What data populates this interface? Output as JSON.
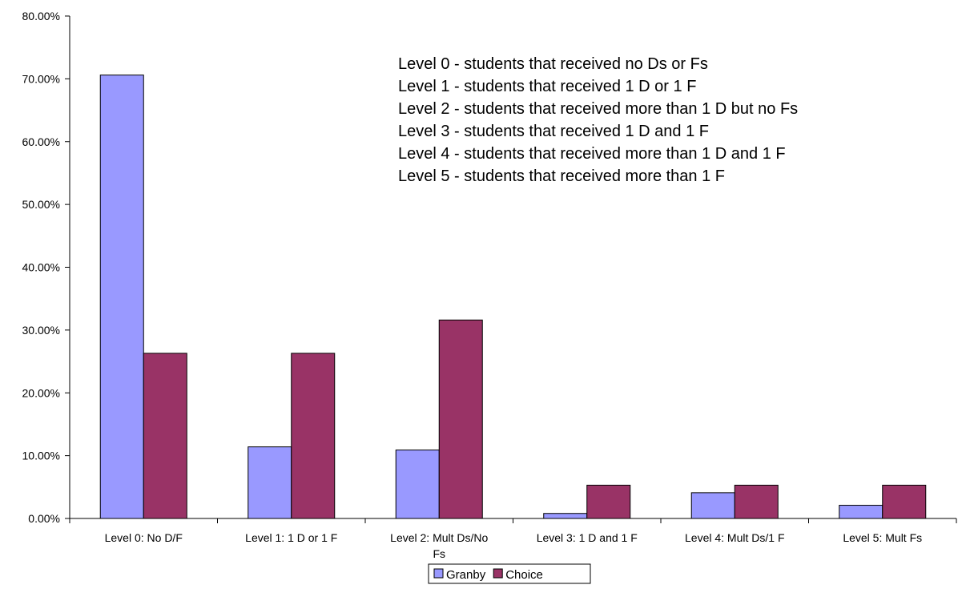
{
  "chart_data": {
    "type": "bar",
    "categories": [
      [
        "Level 0: No D/F"
      ],
      [
        "Level 1: 1 D or 1 F"
      ],
      [
        "Level 2: Mult Ds/No",
        "Fs"
      ],
      [
        "Level 3: 1 D and 1 F"
      ],
      [
        "Level 4: Mult Ds/1 F"
      ],
      [
        "Level 5: Mult Fs"
      ]
    ],
    "series": [
      {
        "name": "Granby",
        "color": "#9999ff",
        "values": [
          70.6,
          11.4,
          10.9,
          0.8,
          4.1,
          2.1
        ]
      },
      {
        "name": "Choice",
        "color": "#993366",
        "values": [
          26.3,
          26.3,
          31.6,
          5.3,
          5.3,
          5.3
        ]
      }
    ],
    "ylim": [
      0,
      80
    ],
    "yticks": [
      0,
      10,
      20,
      30,
      40,
      50,
      60,
      70,
      80
    ],
    "ytick_labels": [
      "0.00%",
      "10.00%",
      "20.00%",
      "30.00%",
      "40.00%",
      "50.00%",
      "60.00%",
      "70.00%",
      "80.00%"
    ],
    "grid": false,
    "legend_position": "bottom",
    "annotations": [
      "Level 0 - students that received no Ds or Fs",
      "Level 1 - students that received 1 D or 1 F",
      "Level 2 - students that received more than 1 D but no Fs",
      "Level 3 - students that received 1 D and 1 F",
      "Level 4 - students that received more than 1 D and 1 F",
      "Level 5 - students that received more than 1 F"
    ]
  }
}
